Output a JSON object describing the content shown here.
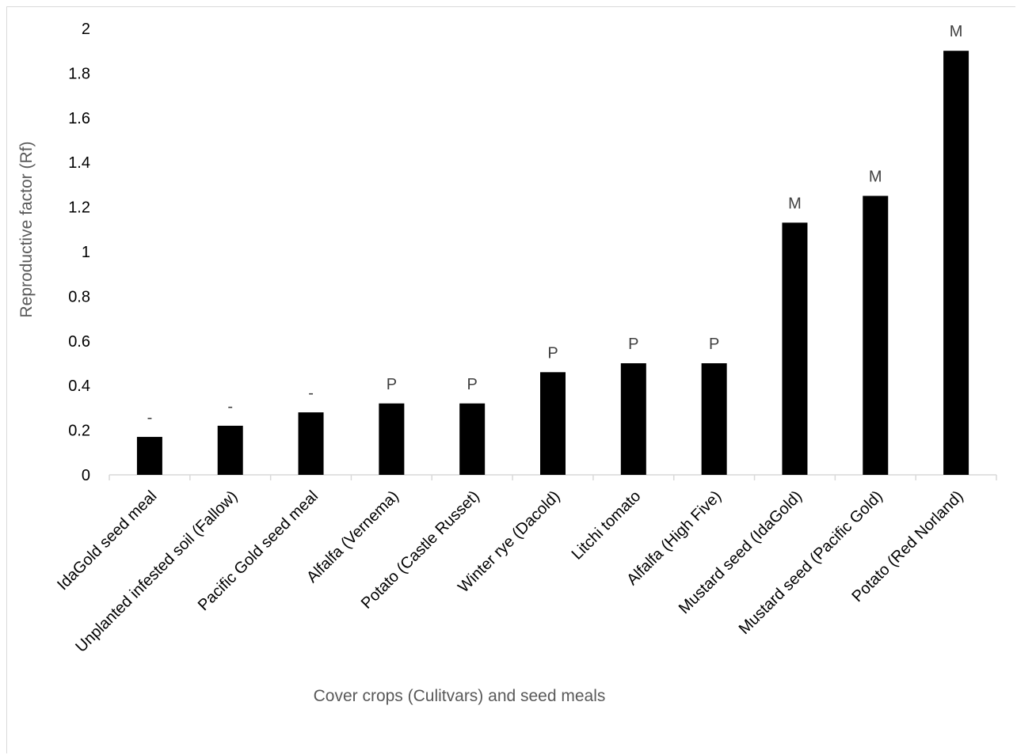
{
  "chart_data": {
    "type": "bar",
    "title": "",
    "xlabel": "Cover crops (Culitvars) and seed meals",
    "ylabel": "Reproductive factor (Rf)",
    "ylim": [
      0,
      2
    ],
    "yticks": [
      0,
      0.2,
      0.4,
      0.6,
      0.8,
      1,
      1.2,
      1.4,
      1.6,
      1.8,
      2
    ],
    "ytick_labels": [
      "0",
      "0.2",
      "0.4",
      "0.6",
      "0.8",
      "1",
      "1.2",
      "1.4",
      "1.6",
      "1.8",
      "2"
    ],
    "grid": false,
    "legend": "none",
    "bar_color": "#000000",
    "categories": [
      "IdaGold seed meal",
      "Unplanted infested soil (Fallow)",
      "Pacific Gold seed meal",
      "Alfalfa (Vernema)",
      "Potato (Castle Russet)",
      "Winter rye (Dacold)",
      "Litchi tomato",
      "Alfalfa (High Five)",
      "Mustard seed (IdaGold)",
      "Mustard seed (Pacific Gold)",
      "Potato (Red Norland)"
    ],
    "values": [
      0.17,
      0.22,
      0.28,
      0.32,
      0.32,
      0.46,
      0.5,
      0.5,
      1.13,
      1.25,
      1.9
    ],
    "data_labels": [
      "-",
      "-",
      "-",
      "P",
      "P",
      "P",
      "P",
      "P",
      "M",
      "M",
      "M"
    ]
  }
}
